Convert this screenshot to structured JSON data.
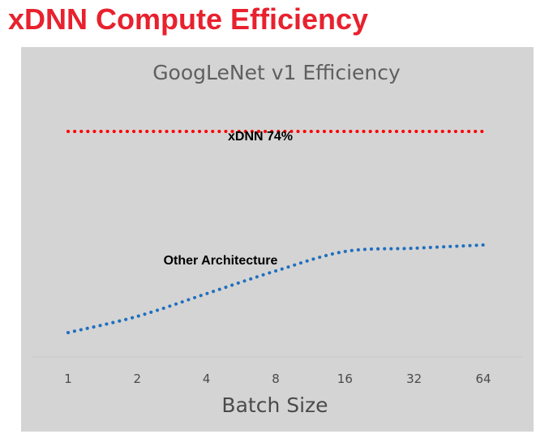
{
  "slide": {
    "title": "xDNN Compute Efficiency"
  },
  "colors": {
    "title": "#e8212e",
    "panel_background": "#d4d4d4",
    "xdnn_series": "#ff0000",
    "other_series": "#1f6fbf"
  },
  "chart_data": {
    "type": "line",
    "title": "GoogLeNet v1 Efficiency",
    "xlabel": "Batch Size",
    "ylabel": "",
    "categories": [
      "1",
      "2",
      "4",
      "8",
      "16",
      "32",
      "64"
    ],
    "ylim": [
      0,
      100
    ],
    "grid": false,
    "legend": "none",
    "line_style": "dotted",
    "series": [
      {
        "name": "xDNN 74%",
        "color": "#ff0000",
        "values": [
          74,
          74,
          74,
          74,
          74,
          74,
          74
        ]
      },
      {
        "name": "Other Architecture",
        "color": "#1f6fbf",
        "values": [
          12,
          17,
          24,
          31,
          37,
          38,
          39
        ]
      }
    ]
  }
}
